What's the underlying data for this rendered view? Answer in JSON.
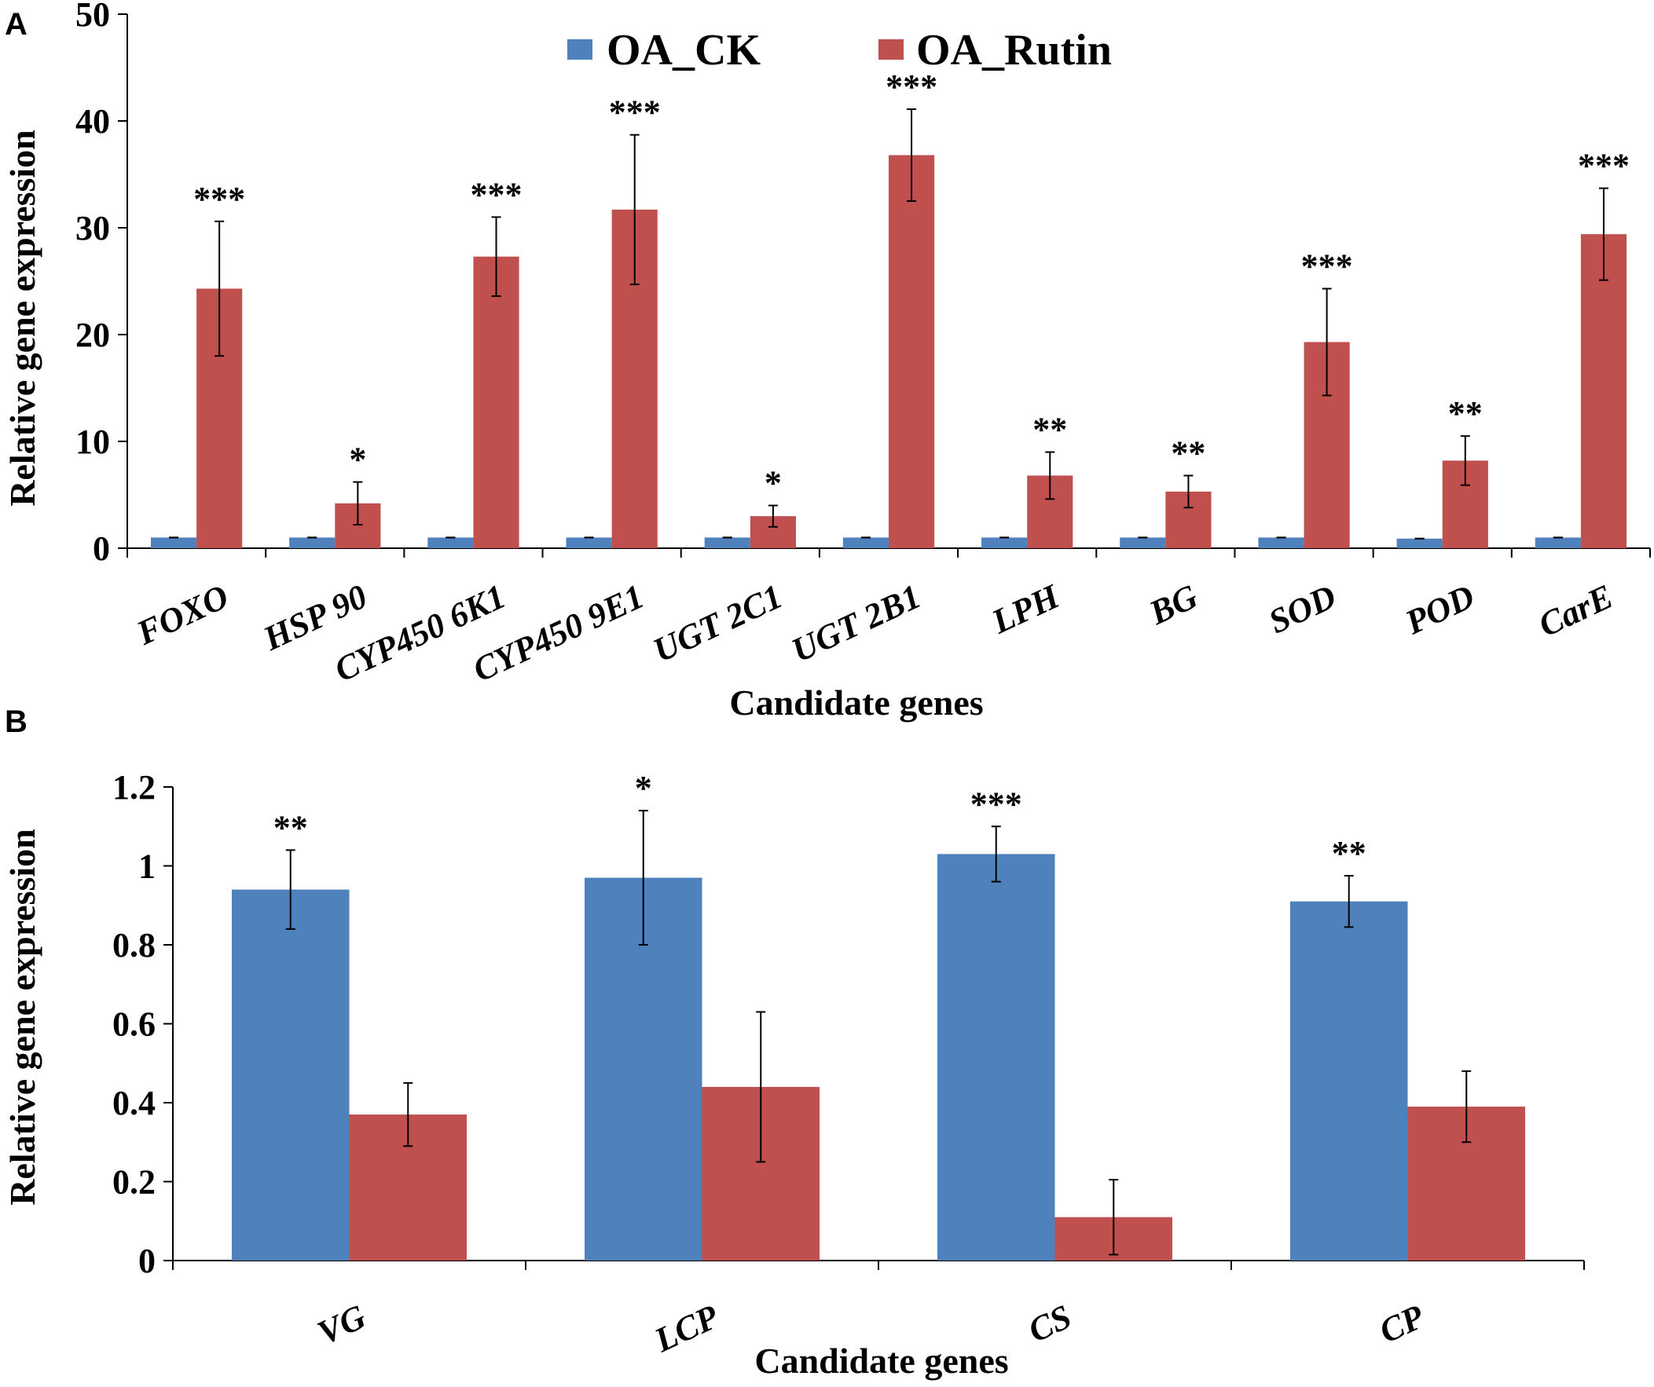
{
  "colors": {
    "ck": "#4f81bd",
    "rutin": "#c0504d",
    "axis": "#000000"
  },
  "legend": {
    "ck": "OA_CK",
    "rutin": "OA_Rutin"
  },
  "chart_data": [
    {
      "panel": "A",
      "type": "bar",
      "xlabel": "Candidate  genes",
      "ylabel": "Relative gene expression",
      "ylim": [
        0,
        50
      ],
      "yticks": [
        0,
        10,
        20,
        30,
        40,
        50
      ],
      "ytick_labels": [
        "0",
        "10",
        "20",
        "30",
        "40",
        "50"
      ],
      "categories": [
        "FOXO",
        "HSP 90",
        "CYP450 6K1",
        "CYP450 9E1",
        "UGT 2C1",
        "UGT 2B1",
        "LPH",
        "BG",
        "SOD",
        "POD",
        "CarE"
      ],
      "series": [
        {
          "name": "OA_CK",
          "values": [
            1,
            1,
            1,
            1,
            1,
            1,
            1,
            1,
            1,
            0.9,
            1
          ],
          "errors": [
            0,
            0,
            0,
            0,
            0,
            0,
            0,
            0,
            0,
            0,
            0
          ]
        },
        {
          "name": "OA_Rutin",
          "values": [
            24.3,
            4.2,
            27.3,
            31.7,
            3.0,
            36.8,
            6.8,
            5.3,
            19.3,
            8.2,
            29.4
          ],
          "errors": [
            6.3,
            2.0,
            3.7,
            7.0,
            1.0,
            4.3,
            2.2,
            1.5,
            5.0,
            2.3,
            4.3
          ]
        }
      ],
      "significance": [
        "***",
        "*",
        "***",
        "***",
        "*",
        "***",
        "**",
        "**",
        "***",
        "**",
        "***"
      ]
    },
    {
      "panel": "B",
      "type": "bar",
      "xlabel": "Candidate  genes",
      "ylabel": "Relative gene expression",
      "ylim": [
        0,
        1.2
      ],
      "yticks": [
        0,
        0.2,
        0.4,
        0.6,
        0.8,
        1.0,
        1.2
      ],
      "ytick_labels": [
        "0",
        "0.2",
        "0.4",
        "0.6",
        "0.8",
        "1",
        "1.2"
      ],
      "categories": [
        "VG",
        "LCP",
        "CS",
        "CP"
      ],
      "series": [
        {
          "name": "OA_CK",
          "values": [
            0.94,
            0.97,
            1.03,
            0.91
          ],
          "errors": [
            0.1,
            0.17,
            0.07,
            0.065
          ]
        },
        {
          "name": "OA_Rutin",
          "values": [
            0.37,
            0.44,
            0.11,
            0.39
          ],
          "errors": [
            0.08,
            0.19,
            0.095,
            0.09
          ]
        }
      ],
      "significance": [
        "**",
        "*",
        "***",
        "**"
      ]
    }
  ]
}
